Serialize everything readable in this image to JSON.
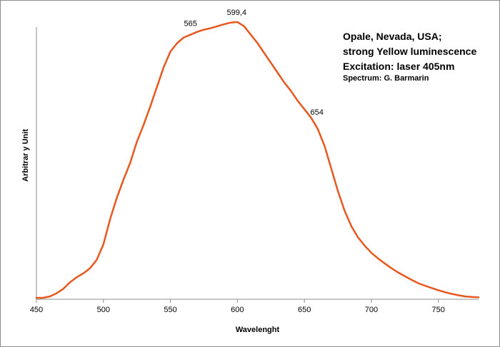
{
  "chart_data": {
    "type": "line",
    "title_lines": [
      "Opale, Nevada, USA;",
      "strong Yellow luminescence",
      "Excitation:  laser 405nm",
      "Spectrum: G. Barmarin"
    ],
    "xlabel": "Wavelenght",
    "ylabel": "Arbitrar y Unit",
    "xlim": [
      450,
      780
    ],
    "ylim": [
      0,
      1
    ],
    "x_ticks": [
      450,
      500,
      550,
      600,
      650,
      700,
      750
    ],
    "x_tick_labels": [
      "450",
      "500",
      "550",
      "600",
      "650",
      "700",
      "750"
    ],
    "grid": false,
    "line_color": "#e8571e",
    "annotations": [
      {
        "text": "565",
        "x": 565
      },
      {
        "text": "599,4",
        "x": 599.4
      },
      {
        "text": "654",
        "x": 654
      }
    ],
    "series": [
      {
        "x": [
          450,
          455,
          460,
          465,
          470,
          475,
          480,
          485,
          490,
          495,
          500,
          505,
          510,
          515,
          520,
          525,
          530,
          535,
          540,
          545,
          550,
          555,
          560,
          565,
          570,
          575,
          580,
          585,
          590,
          595,
          600,
          605,
          610,
          615,
          620,
          625,
          630,
          635,
          640,
          645,
          650,
          655,
          660,
          665,
          670,
          675,
          680,
          685,
          690,
          695,
          700,
          705,
          710,
          715,
          720,
          725,
          730,
          735,
          740,
          745,
          750,
          755,
          760,
          765,
          770,
          775,
          780
        ],
        "y": [
          0.0,
          0.0,
          0.005,
          0.016,
          0.032,
          0.055,
          0.073,
          0.087,
          0.105,
          0.135,
          0.19,
          0.28,
          0.355,
          0.42,
          0.48,
          0.555,
          0.615,
          0.68,
          0.75,
          0.82,
          0.875,
          0.905,
          0.925,
          0.935,
          0.945,
          0.953,
          0.958,
          0.965,
          0.972,
          0.978,
          0.98,
          0.965,
          0.935,
          0.905,
          0.87,
          0.835,
          0.8,
          0.765,
          0.735,
          0.7,
          0.67,
          0.64,
          0.6,
          0.54,
          0.46,
          0.38,
          0.31,
          0.255,
          0.215,
          0.185,
          0.16,
          0.14,
          0.122,
          0.105,
          0.09,
          0.077,
          0.064,
          0.052,
          0.043,
          0.035,
          0.027,
          0.02,
          0.014,
          0.009,
          0.005,
          0.003,
          0.002
        ]
      }
    ]
  }
}
